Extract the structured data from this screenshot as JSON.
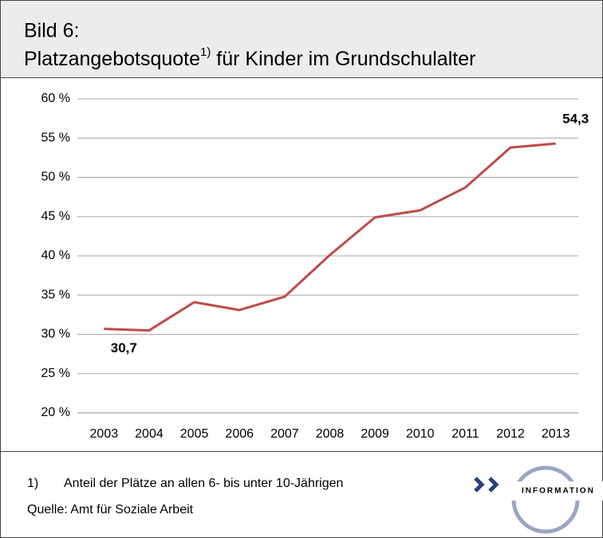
{
  "chart_data": {
    "type": "line",
    "title": "Bild 6:",
    "subtitle": "Platzangebotsquote",
    "subtitle_superscript": "1)",
    "subtitle_rest": " für Kinder im Grundschulalter",
    "categories": [
      "2003",
      "2004",
      "2005",
      "2006",
      "2007",
      "2008",
      "2009",
      "2010",
      "2011",
      "2012",
      "2013"
    ],
    "values": [
      30.7,
      30.5,
      34.1,
      33.1,
      34.8,
      40.1,
      44.9,
      45.8,
      48.7,
      53.8,
      54.3
    ],
    "value_labels": [
      "30,7",
      null,
      null,
      null,
      null,
      null,
      null,
      null,
      null,
      null,
      "54,3"
    ],
    "color": "#be4b48",
    "ylim": [
      20,
      60
    ],
    "yticks": [
      {
        "value": 20,
        "label": "20 %"
      },
      {
        "value": 25,
        "label": "25 %"
      },
      {
        "value": 30,
        "label": "30 %"
      },
      {
        "value": 35,
        "label": "35 %"
      },
      {
        "value": 40,
        "label": "40 %"
      },
      {
        "value": 45,
        "label": "45 %"
      },
      {
        "value": 50,
        "label": "50 %"
      },
      {
        "value": 55,
        "label": "55 %"
      },
      {
        "value": 60,
        "label": "60 %"
      }
    ],
    "grid": true,
    "footnote": {
      "marker": "1)",
      "text": "Anteil der Plätze an allen 6- bis unter 10-Jährigen"
    },
    "source": "Quelle: Amt für Soziale Arbeit",
    "logo_text": "INFORMATION"
  }
}
